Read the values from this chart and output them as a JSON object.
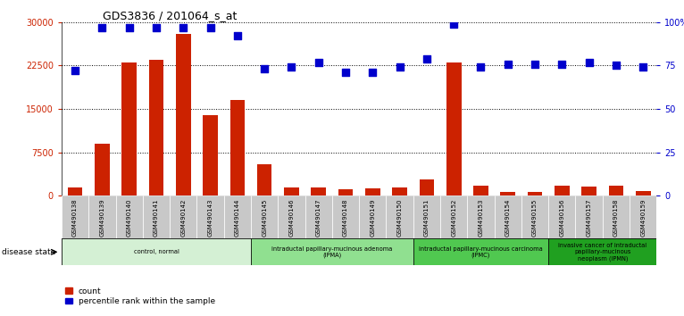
{
  "title": "GDS3836 / 201064_s_at",
  "samples": [
    "GSM490138",
    "GSM490139",
    "GSM490140",
    "GSM490141",
    "GSM490142",
    "GSM490143",
    "GSM490144",
    "GSM490145",
    "GSM490146",
    "GSM490147",
    "GSM490148",
    "GSM490149",
    "GSM490150",
    "GSM490151",
    "GSM490152",
    "GSM490153",
    "GSM490154",
    "GSM490155",
    "GSM490156",
    "GSM490157",
    "GSM490158",
    "GSM490159"
  ],
  "counts": [
    1400,
    9000,
    23000,
    23500,
    28000,
    14000,
    16500,
    5500,
    1400,
    1400,
    1100,
    1300,
    1400,
    2800,
    23000,
    1700,
    700,
    700,
    1800,
    1600,
    1800,
    900
  ],
  "percentiles": [
    72,
    97,
    97,
    97,
    97,
    97,
    92,
    73,
    74,
    77,
    71,
    71,
    74,
    79,
    99,
    74,
    76,
    76,
    76,
    77,
    75,
    74
  ],
  "ylim_left": [
    0,
    30000
  ],
  "ylim_right": [
    0,
    100
  ],
  "yticks_left": [
    0,
    7500,
    15000,
    22500,
    30000
  ],
  "yticks_right": [
    0,
    25,
    50,
    75,
    100
  ],
  "bar_color": "#cc2200",
  "dot_color": "#0000cc",
  "plot_bg": "#ffffff",
  "groups": [
    {
      "label": "control, normal",
      "start": 0,
      "end": 7,
      "color": "#d4f0d4"
    },
    {
      "label": "intraductal papillary-mucinous adenoma\n(IPMA)",
      "start": 7,
      "end": 13,
      "color": "#90e090"
    },
    {
      "label": "intraductal papillary-mucinous carcinoma\n(IPMC)",
      "start": 13,
      "end": 18,
      "color": "#50c850"
    },
    {
      "label": "invasive cancer of intraductal\npapillary-mucinous\nneoplasm (IPMN)",
      "start": 18,
      "end": 22,
      "color": "#20a020"
    }
  ],
  "disease_state_label": "disease state",
  "bar_width": 0.55,
  "dot_size": 40,
  "left_axis_color": "#cc2200",
  "right_axis_color": "#0000cc"
}
